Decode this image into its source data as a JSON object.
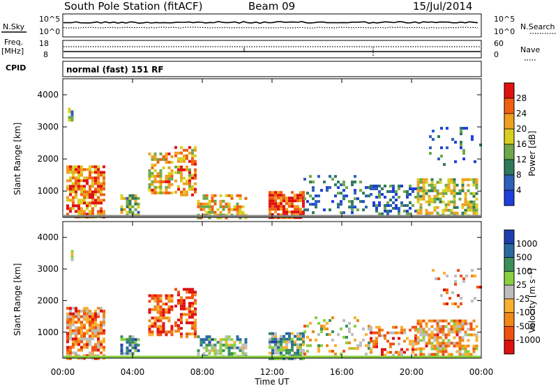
{
  "header": {
    "station": "South Pole Station (fitACF)",
    "beam": "Beam 09",
    "date": "15/Jul/2014"
  },
  "scan_info": {
    "nsky_label": "N.Sky",
    "nsky_ticks": [
      "10^5",
      "10^0"
    ],
    "nsearch_label": "N.Search",
    "nsearch_ticks": [
      "10^5",
      "10^0"
    ],
    "freq_label_line1": "Freq.",
    "freq_label_line2": "[MHz]",
    "freq_ticks": [
      "18",
      "8"
    ],
    "nave_label": "Nave",
    "nave_ticks": [
      "60",
      "0"
    ],
    "cpid_label": "CPID",
    "cpid_value": "normal (fast) 151 RF"
  },
  "colors": {
    "power_scale": [
      "#1f3fdc",
      "#2f5fb8",
      "#2f7a5a",
      "#6fa84a",
      "#d8d020",
      "#f0a020",
      "#f06010",
      "#e01010"
    ],
    "velocity_scale": [
      "#e01010",
      "#f05010",
      "#f08818",
      "#f8b030",
      "#bdbdbd",
      "#8ad040",
      "#3d8f5a",
      "#2a6aa0",
      "#1f3fb0"
    ]
  },
  "chart_data": [
    {
      "type": "heatmap",
      "title": "Power",
      "ylabel": "Slant Range [km]",
      "xlabel": "",
      "x_ticks": [
        "00:00",
        "04:00",
        "08:00",
        "12:00",
        "16:00",
        "20:00",
        "00:00"
      ],
      "xlim_hours": [
        0,
        24
      ],
      "y_ticks": [
        "1000",
        "2000",
        "3000",
        "4000"
      ],
      "ylim_km": [
        180,
        4500
      ],
      "colorbar_label": "Power [dB]",
      "colorbar_ticks": [
        "28",
        "24",
        "20",
        "16",
        "12",
        "8",
        "4"
      ],
      "colorbar_range": [
        0,
        32
      ],
      "regions": [
        {
          "start_h": 0.2,
          "end_h": 2.3,
          "range_km": [
            200,
            1800
          ],
          "level": 0.75,
          "density": 0.75
        },
        {
          "start_h": 0.3,
          "end_h": 0.6,
          "range_km": [
            3200,
            3600
          ],
          "level": 0.35,
          "density": 0.6
        },
        {
          "start_h": 3.3,
          "end_h": 4.4,
          "range_km": [
            250,
            900
          ],
          "level": 0.45,
          "density": 0.55
        },
        {
          "start_h": 4.9,
          "end_h": 6.2,
          "range_km": [
            900,
            2200
          ],
          "level": 0.65,
          "density": 0.6
        },
        {
          "start_h": 6.4,
          "end_h": 7.6,
          "range_km": [
            850,
            2400
          ],
          "level": 0.7,
          "density": 0.55
        },
        {
          "start_h": 7.7,
          "end_h": 10.5,
          "range_km": [
            200,
            900
          ],
          "level": 0.62,
          "density": 0.6
        },
        {
          "start_h": 11.8,
          "end_h": 13.8,
          "range_km": [
            200,
            1000
          ],
          "level": 0.88,
          "density": 0.8
        },
        {
          "start_h": 13.8,
          "end_h": 17.5,
          "range_km": [
            300,
            1500
          ],
          "level": 0.25,
          "density": 0.25
        },
        {
          "start_h": 17.6,
          "end_h": 20.2,
          "range_km": [
            250,
            1200
          ],
          "level": 0.22,
          "density": 0.45
        },
        {
          "start_h": 20.3,
          "end_h": 23.8,
          "range_km": [
            250,
            1400
          ],
          "level": 0.5,
          "density": 0.6
        },
        {
          "start_h": 21.0,
          "end_h": 23.9,
          "range_km": [
            1800,
            3000
          ],
          "level": 0.2,
          "density": 0.12
        }
      ]
    },
    {
      "type": "heatmap",
      "title": "Velocity",
      "ylabel": "Slant Range [km]",
      "xlabel": "Time UT",
      "x_ticks": [
        "00:00",
        "04:00",
        "08:00",
        "12:00",
        "16:00",
        "20:00",
        "00:00"
      ],
      "xlim_hours": [
        0,
        24
      ],
      "y_ticks": [
        "1000",
        "2000",
        "3000",
        "4000"
      ],
      "ylim_km": [
        180,
        4500
      ],
      "colorbar_label": "Velocity [m s⁻¹]",
      "colorbar_ticks": [
        "1000",
        "500",
        "100",
        "25",
        "-25",
        "-100",
        "-500",
        "-1000"
      ],
      "regions": [
        {
          "start_h": 0.2,
          "end_h": 2.3,
          "range_km": [
            200,
            1800
          ],
          "level": 0.3,
          "density": 0.75
        },
        {
          "start_h": 0.3,
          "end_h": 0.6,
          "range_km": [
            3200,
            3600
          ],
          "level": 0.55,
          "density": 0.5
        },
        {
          "start_h": 3.3,
          "end_h": 4.4,
          "range_km": [
            250,
            900
          ],
          "level": 0.72,
          "density": 0.5
        },
        {
          "start_h": 4.9,
          "end_h": 6.2,
          "range_km": [
            900,
            2200
          ],
          "level": 0.2,
          "density": 0.6
        },
        {
          "start_h": 6.4,
          "end_h": 7.6,
          "range_km": [
            850,
            2400
          ],
          "level": 0.12,
          "density": 0.55
        },
        {
          "start_h": 7.7,
          "end_h": 10.5,
          "range_km": [
            200,
            900
          ],
          "level": 0.66,
          "density": 0.6
        },
        {
          "start_h": 11.8,
          "end_h": 13.8,
          "range_km": [
            200,
            1000
          ],
          "level": 0.66,
          "density": 0.8
        },
        {
          "start_h": 13.8,
          "end_h": 17.5,
          "range_km": [
            300,
            1500
          ],
          "level": 0.45,
          "density": 0.2
        },
        {
          "start_h": 17.6,
          "end_h": 20.2,
          "range_km": [
            250,
            1200
          ],
          "level": 0.28,
          "density": 0.45
        },
        {
          "start_h": 20.3,
          "end_h": 23.8,
          "range_km": [
            250,
            1400
          ],
          "level": 0.35,
          "density": 0.6
        },
        {
          "start_h": 21.0,
          "end_h": 23.9,
          "range_km": [
            1800,
            3000
          ],
          "level": 0.3,
          "density": 0.1
        }
      ]
    }
  ]
}
